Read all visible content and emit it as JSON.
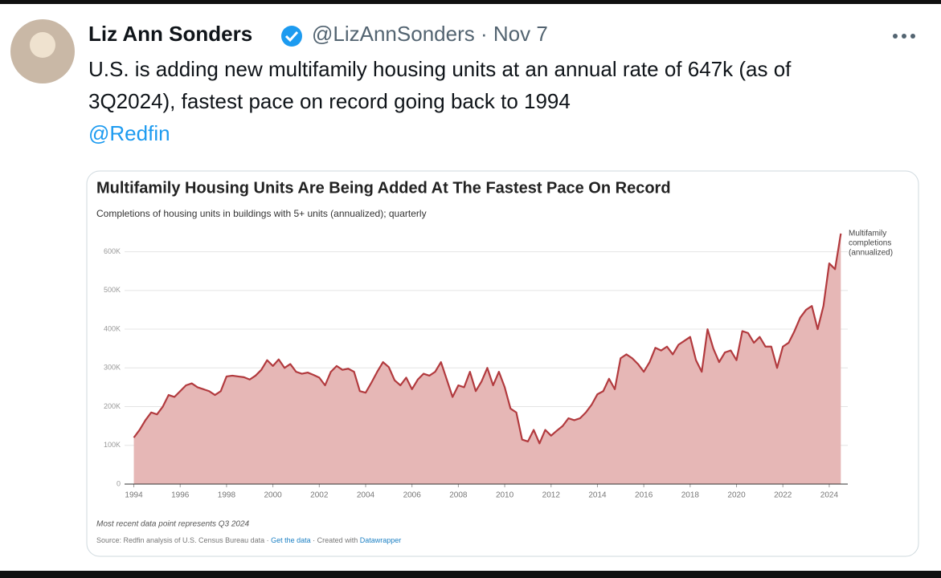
{
  "tweet": {
    "author_name": "Liz Ann Sonders",
    "handle": "@LizAnnSonders",
    "separator": "·",
    "date": "Nov 7",
    "text_lines": [
      "U.S. is adding new multifamily housing units at an annual rate of 647k (as of",
      "3Q2024), fastest pace on record going back to 1994"
    ],
    "mention": "@Redfin"
  },
  "chart_data": {
    "type": "area",
    "title": "Multifamily Housing Units Are Being Added At The Fastest Pace On Record",
    "subtitle": "Completions of housing units in buildings with 5+ units (annualized); quarterly",
    "annotation": [
      "Multifamily",
      "completions",
      "(annualized)"
    ],
    "note": "Most recent data point represents Q3 2024",
    "source_parts": [
      "Source: Redfin analysis of U.S. Census Bureau data · ",
      "Get the data",
      " · Created with ",
      "Datawrapper"
    ],
    "x": [
      1994,
      1994.25,
      1994.5,
      1994.75,
      1995,
      1995.25,
      1995.5,
      1995.75,
      1996,
      1996.25,
      1996.5,
      1996.75,
      1997,
      1997.25,
      1997.5,
      1997.75,
      1998,
      1998.25,
      1998.5,
      1998.75,
      1999,
      1999.25,
      1999.5,
      1999.75,
      2000,
      2000.25,
      2000.5,
      2000.75,
      2001,
      2001.25,
      2001.5,
      2001.75,
      2002,
      2002.25,
      2002.5,
      2002.75,
      2003,
      2003.25,
      2003.5,
      2003.75,
      2004,
      2004.25,
      2004.5,
      2004.75,
      2005,
      2005.25,
      2005.5,
      2005.75,
      2006,
      2006.25,
      2006.5,
      2006.75,
      2007,
      2007.25,
      2007.5,
      2007.75,
      2008,
      2008.25,
      2008.5,
      2008.75,
      2009,
      2009.25,
      2009.5,
      2009.75,
      2010,
      2010.25,
      2010.5,
      2010.75,
      2011,
      2011.25,
      2011.5,
      2011.75,
      2012,
      2012.25,
      2012.5,
      2012.75,
      2013,
      2013.25,
      2013.5,
      2013.75,
      2014,
      2014.25,
      2014.5,
      2014.75,
      2015,
      2015.25,
      2015.5,
      2015.75,
      2016,
      2016.25,
      2016.5,
      2016.75,
      2017,
      2017.25,
      2017.5,
      2017.75,
      2018,
      2018.25,
      2018.5,
      2018.75,
      2019,
      2019.25,
      2019.5,
      2019.75,
      2020,
      2020.25,
      2020.5,
      2020.75,
      2021,
      2021.25,
      2021.5,
      2021.75,
      2022,
      2022.25,
      2022.5,
      2022.75,
      2023,
      2023.25,
      2023.5,
      2023.75,
      2024,
      2024.25,
      2024.5
    ],
    "series": [
      {
        "color": "#b23a3e",
        "fill": "#e6b7b6",
        "values": [
          120,
          140,
          165,
          185,
          180,
          200,
          230,
          225,
          240,
          255,
          260,
          250,
          245,
          240,
          230,
          240,
          278,
          280,
          278,
          276,
          270,
          280,
          295,
          320,
          305,
          322,
          300,
          310,
          290,
          285,
          288,
          282,
          275,
          255,
          290,
          305,
          295,
          298,
          290,
          240,
          236,
          262,
          290,
          315,
          302,
          268,
          255,
          275,
          245,
          270,
          285,
          280,
          290,
          315,
          270,
          225,
          255,
          250,
          290,
          240,
          265,
          300,
          255,
          290,
          250,
          195,
          185,
          115,
          110,
          140,
          105,
          140,
          125,
          138,
          150,
          170,
          165,
          170,
          185,
          205,
          232,
          240,
          272,
          245,
          325,
          335,
          325,
          310,
          290,
          315,
          352,
          345,
          355,
          335,
          360,
          370,
          380,
          320,
          290,
          400,
          350,
          315,
          340,
          345,
          320,
          395,
          390,
          365,
          380,
          355,
          355,
          300,
          355,
          365,
          395,
          430,
          450,
          460,
          400,
          460,
          570,
          555,
          647
        ]
      }
    ],
    "xlim": [
      1993.6,
      2024.8
    ],
    "ylim": [
      0,
      680
    ],
    "xticks": [
      1994,
      1996,
      1998,
      2000,
      2002,
      2004,
      2006,
      2008,
      2010,
      2012,
      2014,
      2016,
      2018,
      2020,
      2022,
      2024
    ],
    "yticks": [
      0,
      {
        "value": 100,
        "label": "100K"
      },
      {
        "value": 200,
        "label": "200K"
      },
      {
        "value": 300,
        "label": "300K"
      },
      {
        "value": 400,
        "label": "400K"
      },
      {
        "value": 500,
        "label": "500K"
      },
      {
        "value": 600,
        "label": "600K"
      }
    ],
    "grid": true
  }
}
